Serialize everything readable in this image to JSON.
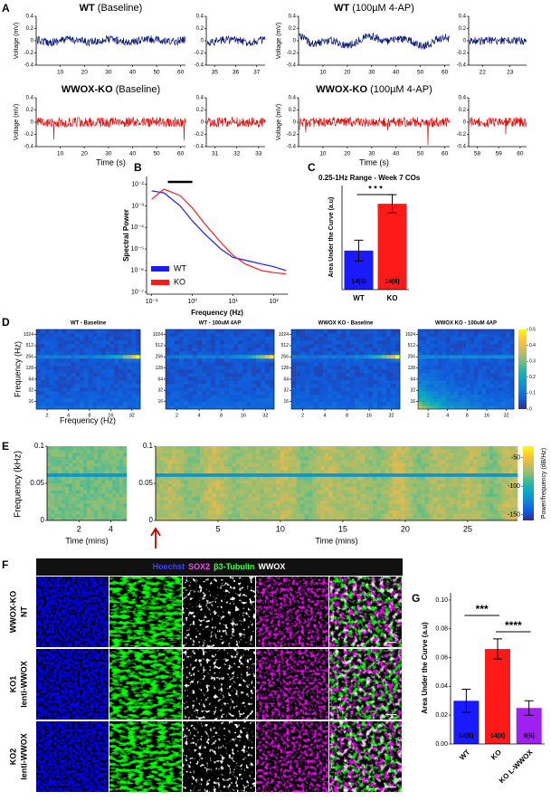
{
  "panel_letters": [
    "A",
    "B",
    "C",
    "D",
    "E",
    "F",
    "G"
  ],
  "panel_a": {
    "y_label": "Voltage (mV)",
    "x_label": "Time (s)",
    "ylim": [
      -0.4,
      0.4
    ],
    "yticks": [
      0.4,
      0.2,
      0,
      -0.2,
      -0.4
    ],
    "rows": [
      {
        "genotype": "WT",
        "condition": "(Baseline)",
        "color": "#0b1a7a",
        "xlim": [
          0,
          62
        ],
        "xticks": [
          10,
          20,
          30,
          40,
          50,
          60
        ],
        "zoom_xlim": [
          34.6,
          37.4
        ],
        "zoom_xticks": [
          35,
          36,
          37
        ]
      },
      {
        "genotype": "WT",
        "condition": "(100µM 4-AP)",
        "color": "#0b1a7a",
        "xlim": [
          0,
          62
        ],
        "xticks": [
          10,
          20,
          30,
          40,
          50,
          60
        ],
        "zoom_xlim": [
          21.5,
          23.6
        ],
        "zoom_xticks": [
          22,
          23
        ]
      },
      {
        "genotype": "WWOX-KO",
        "condition": "(Baseline)",
        "color": "#e0100f",
        "xlim": [
          0,
          62
        ],
        "xticks": [
          10,
          20,
          30,
          40,
          50,
          60
        ],
        "zoom_xlim": [
          30.6,
          33.3
        ],
        "zoom_xticks": [
          31,
          32,
          33
        ]
      },
      {
        "genotype": "WWOX-KO",
        "condition": "(100µM 4-AP)",
        "color": "#e0100f",
        "xlim": [
          0,
          62
        ],
        "xticks": [
          10,
          20,
          30,
          40,
          50,
          60
        ],
        "zoom_xlim": [
          57.6,
          60.3
        ],
        "zoom_xticks": [
          58,
          59,
          60
        ]
      }
    ]
  },
  "chart_data": [
    {
      "type": "line",
      "y_label": "Spectral Power",
      "x_label": "Frequency (Hz)",
      "log_x": true,
      "log_y": true,
      "xlim": [
        0.075,
        220
      ],
      "ylim": [
        8e-08,
        0.023
      ],
      "xticks": [
        {
          "value": 0.1,
          "label": "10⁻¹"
        },
        {
          "value": 1,
          "label": "10⁰"
        },
        {
          "value": 10,
          "label": "10¹"
        },
        {
          "value": 100,
          "label": "10²"
        }
      ],
      "yticks": [
        {
          "value": 0.01,
          "label": "10⁻²"
        },
        {
          "value": 0.001,
          "label": "10⁻³"
        },
        {
          "value": 0.0001,
          "label": "10⁻⁴"
        },
        {
          "value": 1e-05,
          "label": "10⁻⁵"
        },
        {
          "value": 1e-06,
          "label": "10⁻⁶"
        },
        {
          "value": 1e-07,
          "label": "10⁻⁷"
        }
      ],
      "highlight_range": [
        0.25,
        1
      ],
      "x": [
        0.1,
        0.2,
        0.5,
        1,
        2,
        5,
        10,
        20,
        50,
        100,
        200
      ],
      "series": [
        {
          "name": "WT",
          "color": "#1a1aff",
          "values": [
            0.005,
            0.004,
            0.001,
            0.0002,
            5e-05,
            1e-05,
            4e-06,
            3e-06,
            2e-06,
            1.5e-06,
            1e-06
          ]
        },
        {
          "name": "KO",
          "color": "#ff1a1a",
          "values": [
            0.002,
            0.006,
            0.003,
            0.0008,
            0.00015,
            2e-05,
            5e-06,
            2e-06,
            1e-06,
            8e-07,
            7e-07
          ]
        }
      ],
      "legend": "lower left"
    },
    {
      "type": "bar",
      "title": "0.25-1Hz Range - Week 7 COs",
      "y_label": "Area Under the Curve (a.u)",
      "categories": [
        "WT",
        "KO"
      ],
      "values": [
        0.03,
        0.066
      ],
      "errors": [
        0.008,
        0.007
      ],
      "colors": [
        "#1a1aff",
        "#ff1a1a"
      ],
      "bar_labels": [
        "14(5)",
        "14(8)"
      ],
      "significance": [
        "* * *"
      ],
      "ylim": [
        0,
        0.08
      ]
    },
    {
      "type": "bar",
      "y_label": "Area Under the Curve (a.u)",
      "categories": [
        "WT",
        "KO",
        "KO L-WWOX"
      ],
      "values": [
        0.03,
        0.066,
        0.025
      ],
      "errors": [
        0.008,
        0.007,
        0.005
      ],
      "colors": [
        "#1a1aff",
        "#ff1a1a",
        "#a020f0"
      ],
      "bar_labels": [
        "14(5)",
        "14(8)",
        "9(6)"
      ],
      "significance": [
        "***",
        "****"
      ],
      "ylim": [
        0,
        0.105
      ],
      "yticks": [
        {
          "value": 0,
          "label": "0.00"
        },
        {
          "value": 0.02,
          "label": "0.02"
        },
        {
          "value": 0.04,
          "label": "0.04"
        },
        {
          "value": 0.06,
          "label": "0.06"
        },
        {
          "value": 0.08,
          "label": "0.08"
        },
        {
          "value": 0.1,
          "label": "0.10"
        }
      ]
    }
  ],
  "panel_d": {
    "y_label": "Frequency (Hz)",
    "x_label": "Frequency (Hz)",
    "titles": [
      "WT - Baseline",
      "WT - 100uM 4AP",
      "WWOX KO - Baseline",
      "WWOX KO - 100uM 4AP"
    ],
    "xlim": [
      1.4,
      42
    ],
    "xticks": [
      2,
      4,
      8,
      16,
      32
    ],
    "ylim": [
      10,
      1400
    ],
    "yticks": [
      1024,
      512,
      256,
      128,
      64,
      32,
      16
    ],
    "clim": [
      0,
      0.5
    ],
    "colorbar_ticks": [
      0,
      0.1,
      0.2,
      0.3,
      0.4,
      0.5
    ]
  },
  "panel_e": {
    "y_label": "Frequency (kHz)",
    "x_label": "Time (mins)",
    "colorbar_label": "Power/frequency (dB/Hz)",
    "ylim": [
      0,
      0.1
    ],
    "yticks": [
      0,
      0.05,
      0.1
    ],
    "clim": [
      -160,
      -30
    ],
    "colorbar_ticks": [
      -50,
      -100,
      -150
    ],
    "plots": [
      {
        "xlim": [
          0,
          5
        ],
        "xticks": [
          2,
          4
        ]
      },
      {
        "xlim": [
          0,
          29
        ],
        "xticks": [
          5,
          10,
          15,
          20,
          25
        ]
      }
    ]
  },
  "panel_f": {
    "channels": [
      {
        "name": "Hoechst",
        "color": "#4040ff"
      },
      {
        "name": "SOX2",
        "color": "#ff40ff"
      },
      {
        "name": "β3-Tubulin",
        "color": "#40ff40"
      },
      {
        "name": "WWOX",
        "color": "#ffffff"
      }
    ],
    "rows": [
      [
        "WWOX-KO",
        "NT"
      ],
      [
        "KO1",
        "lenti-WWOX"
      ],
      [
        "KO2",
        "lenti-WWOX"
      ]
    ]
  }
}
